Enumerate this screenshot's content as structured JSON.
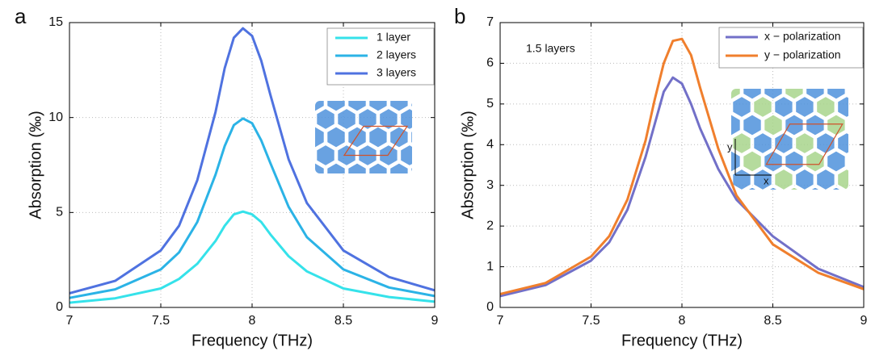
{
  "chart_data": [
    {
      "type": "line",
      "panel_label": "a",
      "xlabel": "Frequency (THz)",
      "ylabel": "Absorption   (‰)",
      "x": [
        7,
        7.25,
        7.5,
        7.6,
        7.7,
        7.8,
        7.85,
        7.9,
        7.95,
        8,
        8.05,
        8.1,
        8.2,
        8.3,
        8.5,
        8.75,
        9
      ],
      "series": [
        {
          "name": "1 layer",
          "color": "#35e2ea",
          "values": [
            0.25,
            0.48,
            1.0,
            1.5,
            2.3,
            3.5,
            4.3,
            4.9,
            5.05,
            4.9,
            4.5,
            3.85,
            2.7,
            1.9,
            1.0,
            0.55,
            0.3
          ]
        },
        {
          "name": "2 layers",
          "color": "#2bb3e6",
          "values": [
            0.5,
            0.95,
            2.0,
            2.9,
            4.5,
            7.0,
            8.5,
            9.6,
            9.95,
            9.7,
            8.8,
            7.6,
            5.3,
            3.7,
            2.0,
            1.05,
            0.6
          ]
        },
        {
          "name": "3 layers",
          "color": "#4f72e0",
          "values": [
            0.75,
            1.4,
            3.0,
            4.3,
            6.7,
            10.3,
            12.6,
            14.2,
            14.7,
            14.3,
            13.0,
            11.2,
            7.8,
            5.5,
            3.0,
            1.6,
            0.9
          ]
        }
      ],
      "xlim": [
        7,
        9
      ],
      "xticks": [
        7,
        7.5,
        8,
        8.5,
        9
      ],
      "ylim": [
        0,
        15
      ],
      "yticks": [
        0,
        5,
        10,
        15
      ],
      "grid": true,
      "legend": "upper right"
    },
    {
      "type": "line",
      "panel_label": "b",
      "xlabel": "Frequency (THz)",
      "ylabel": "Absorption   (‰)",
      "annotation": "1.5 layers",
      "inset_axis_labels": {
        "x": "x",
        "y": "y"
      },
      "x": [
        7,
        7.25,
        7.5,
        7.6,
        7.7,
        7.8,
        7.85,
        7.9,
        7.95,
        8,
        8.05,
        8.1,
        8.2,
        8.3,
        8.5,
        8.75,
        9
      ],
      "series": [
        {
          "name": "x − polarization",
          "color": "#7270c8",
          "values": [
            0.28,
            0.55,
            1.15,
            1.6,
            2.4,
            3.7,
            4.5,
            5.3,
            5.65,
            5.5,
            5.0,
            4.4,
            3.4,
            2.65,
            1.75,
            0.95,
            0.5
          ]
        },
        {
          "name": "y − polarization",
          "color": "#f07f2d",
          "values": [
            0.33,
            0.6,
            1.25,
            1.75,
            2.65,
            4.1,
            5.1,
            6.0,
            6.55,
            6.6,
            6.2,
            5.4,
            3.9,
            2.75,
            1.55,
            0.85,
            0.45
          ]
        }
      ],
      "xlim": [
        7,
        9
      ],
      "xticks": [
        7,
        7.5,
        8,
        8.5,
        9
      ],
      "ylim": [
        0,
        7
      ],
      "yticks": [
        0,
        1,
        2,
        3,
        4,
        5,
        6,
        7
      ],
      "grid": true,
      "legend": "upper right"
    }
  ]
}
